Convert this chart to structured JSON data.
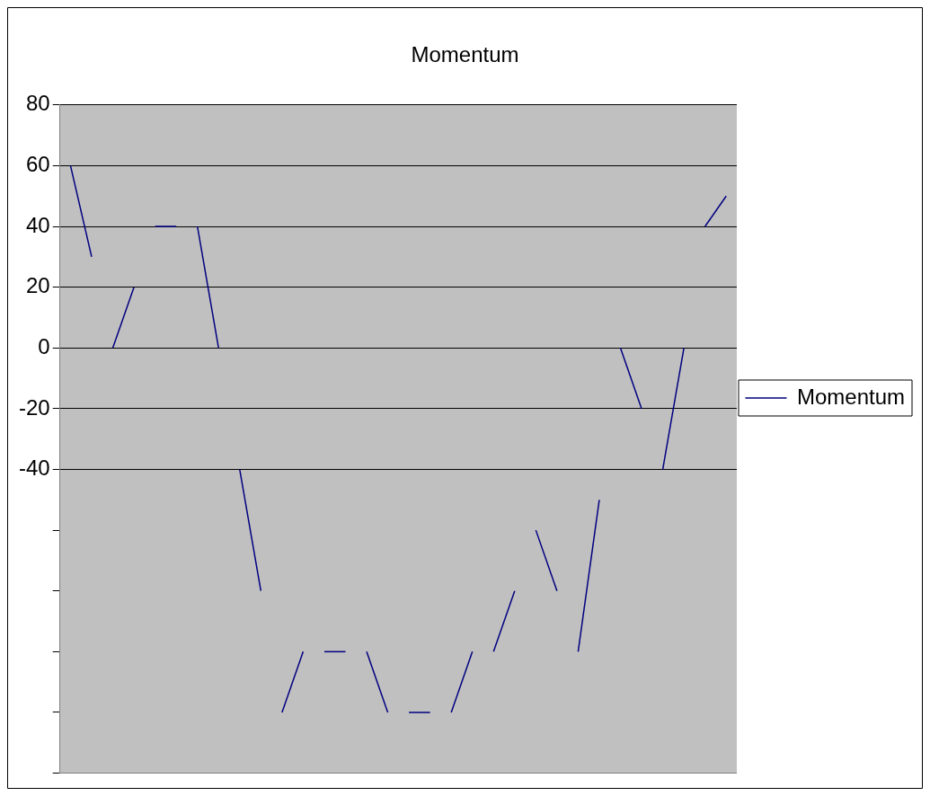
{
  "chart_data": {
    "type": "line",
    "title": "Momentum",
    "categories": [
      null,
      null,
      null,
      null,
      null,
      null,
      null,
      null,
      null,
      null,
      null,
      null,
      null,
      null,
      null,
      null,
      null,
      null,
      null,
      null,
      null,
      null,
      null,
      null,
      null,
      null,
      null,
      null,
      null,
      null,
      null,
      null
    ],
    "series": [
      {
        "name": "Momentum",
        "color": "#000080",
        "values": [
          60,
          30,
          null,
          null,
          null,
          null,
          null,
          null,
          null,
          null,
          null,
          null,
          null,
          null,
          null,
          null,
          null,
          null,
          null,
          null,
          null,
          null,
          null,
          null,
          null,
          null,
          null,
          null,
          null,
          null,
          null,
          null
        ]
      },
      {
        "color": "#000080",
        "values": [
          null,
          null,
          0,
          20,
          null,
          null,
          null,
          null,
          null,
          null,
          null,
          null,
          null,
          null,
          null,
          null,
          null,
          null,
          null,
          null,
          null,
          null,
          null,
          null,
          null,
          null,
          null,
          null,
          null,
          null,
          null,
          null
        ]
      },
      {
        "color": "#000080",
        "values": [
          null,
          null,
          null,
          null,
          40,
          40,
          null,
          null,
          null,
          null,
          null,
          null,
          null,
          null,
          null,
          null,
          null,
          null,
          null,
          null,
          null,
          null,
          null,
          null,
          null,
          null,
          null,
          null,
          null,
          null,
          null,
          null
        ]
      },
      {
        "color": "#000080",
        "values": [
          null,
          null,
          null,
          null,
          null,
          null,
          40,
          0,
          null,
          null,
          null,
          null,
          null,
          null,
          null,
          null,
          null,
          null,
          null,
          null,
          null,
          null,
          null,
          null,
          null,
          null,
          null,
          null,
          null,
          null,
          null,
          null
        ]
      },
      {
        "color": "#000080",
        "values": [
          null,
          null,
          null,
          null,
          null,
          null,
          null,
          null,
          -40,
          -80,
          null,
          null,
          null,
          null,
          null,
          null,
          null,
          null,
          null,
          null,
          null,
          null,
          null,
          null,
          null,
          null,
          null,
          null,
          null,
          null,
          null,
          null
        ]
      },
      {
        "color": "#000080",
        "values": [
          null,
          null,
          null,
          null,
          null,
          null,
          null,
          null,
          null,
          null,
          -120,
          -100,
          null,
          null,
          null,
          null,
          null,
          null,
          null,
          null,
          null,
          null,
          null,
          null,
          null,
          null,
          null,
          null,
          null,
          null,
          null,
          null
        ]
      },
      {
        "color": "#000080",
        "values": [
          null,
          null,
          null,
          null,
          null,
          null,
          null,
          null,
          null,
          null,
          null,
          null,
          -100,
          -100,
          null,
          null,
          null,
          null,
          null,
          null,
          null,
          null,
          null,
          null,
          null,
          null,
          null,
          null,
          null,
          null,
          null,
          null
        ]
      },
      {
        "color": "#000080",
        "values": [
          null,
          null,
          null,
          null,
          null,
          null,
          null,
          null,
          null,
          null,
          null,
          null,
          null,
          null,
          -100,
          -120,
          null,
          null,
          null,
          null,
          null,
          null,
          null,
          null,
          null,
          null,
          null,
          null,
          null,
          null,
          null,
          null
        ]
      },
      {
        "color": "#000080",
        "values": [
          null,
          null,
          null,
          null,
          null,
          null,
          null,
          null,
          null,
          null,
          null,
          null,
          null,
          null,
          null,
          null,
          -120,
          -120,
          null,
          null,
          null,
          null,
          null,
          null,
          null,
          null,
          null,
          null,
          null,
          null,
          null,
          null
        ]
      },
      {
        "color": "#000080",
        "values": [
          null,
          null,
          null,
          null,
          null,
          null,
          null,
          null,
          null,
          null,
          null,
          null,
          null,
          null,
          null,
          null,
          null,
          null,
          -120,
          -100,
          null,
          null,
          null,
          null,
          null,
          null,
          null,
          null,
          null,
          null,
          null,
          null
        ]
      },
      {
        "color": "#000080",
        "values": [
          null,
          null,
          null,
          null,
          null,
          null,
          null,
          null,
          null,
          null,
          null,
          null,
          null,
          null,
          null,
          null,
          null,
          null,
          null,
          null,
          -100,
          -80,
          null,
          null,
          null,
          null,
          null,
          null,
          null,
          null,
          null,
          null
        ]
      },
      {
        "color": "#000080",
        "values": [
          null,
          null,
          null,
          null,
          null,
          null,
          null,
          null,
          null,
          null,
          null,
          null,
          null,
          null,
          null,
          null,
          null,
          null,
          null,
          null,
          null,
          null,
          -60,
          -80,
          null,
          null,
          null,
          null,
          null,
          null,
          null,
          null
        ]
      },
      {
        "color": "#000080",
        "values": [
          null,
          null,
          null,
          null,
          null,
          null,
          null,
          null,
          null,
          null,
          null,
          null,
          null,
          null,
          null,
          null,
          null,
          null,
          null,
          null,
          null,
          null,
          null,
          null,
          -100,
          -50,
          null,
          null,
          null,
          null,
          null,
          null
        ]
      },
      {
        "color": "#000080",
        "values": [
          null,
          null,
          null,
          null,
          null,
          null,
          null,
          null,
          null,
          null,
          null,
          null,
          null,
          null,
          null,
          null,
          null,
          null,
          null,
          null,
          null,
          null,
          null,
          null,
          null,
          null,
          0,
          -20,
          null,
          null,
          null,
          null
        ]
      },
      {
        "color": "#000080",
        "values": [
          null,
          null,
          null,
          null,
          null,
          null,
          null,
          null,
          null,
          null,
          null,
          null,
          null,
          null,
          null,
          null,
          null,
          null,
          null,
          null,
          null,
          null,
          null,
          null,
          null,
          null,
          null,
          null,
          -40,
          0,
          null,
          null
        ]
      },
      {
        "color": "#000080",
        "values": [
          null,
          null,
          null,
          null,
          null,
          null,
          null,
          null,
          null,
          null,
          null,
          null,
          null,
          null,
          null,
          null,
          null,
          null,
          null,
          null,
          null,
          null,
          null,
          null,
          null,
          null,
          null,
          null,
          null,
          null,
          40,
          50
        ]
      }
    ],
    "ylim": [
      -140,
      80
    ],
    "yticks": [
      80,
      60,
      40,
      20,
      0,
      -20,
      -40,
      {
        "value": -60,
        "label": null
      },
      {
        "value": -80,
        "label": null
      },
      {
        "value": -100,
        "label": null
      },
      {
        "value": -120,
        "label": null
      },
      {
        "value": -140,
        "label": null
      }
    ],
    "tick_labels": "y",
    "grid": "y",
    "legend": "right",
    "marker": "none",
    "line_style": "solid"
  }
}
